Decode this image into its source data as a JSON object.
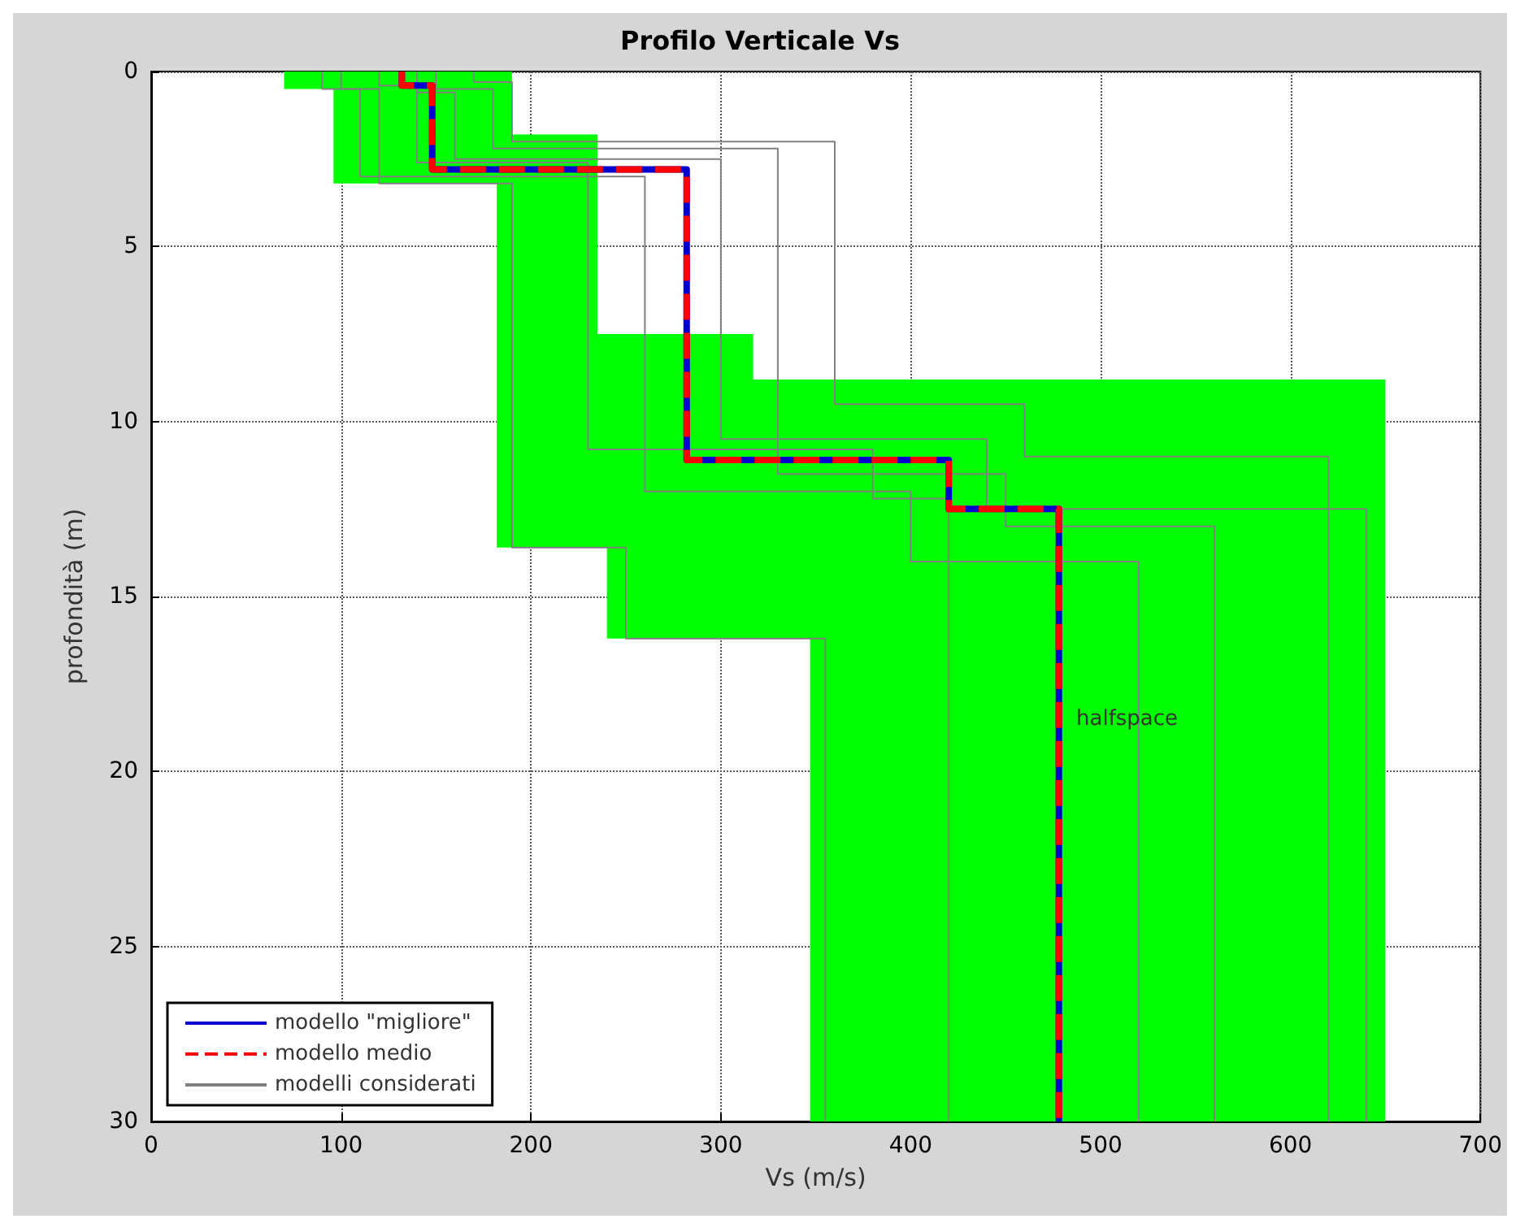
{
  "chart_data": {
    "type": "line",
    "title": "Profilo Verticale Vs",
    "xlabel": "Vs (m/s)",
    "ylabel": "profondità (m)",
    "xlim": [
      0,
      700
    ],
    "xticks": [
      0,
      100,
      200,
      300,
      400,
      500,
      600,
      700
    ],
    "ylim": [
      30,
      0
    ],
    "yticks": [
      0,
      5,
      10,
      15,
      20,
      25,
      30
    ],
    "grid": true,
    "legend": "bottom left",
    "marker": "none",
    "annotations": [
      "halfspace"
    ],
    "series": [
      {
        "type": "area",
        "color": "#00ff00",
        "x": [
          70,
          190,
          190,
          235,
          235,
          317,
          317,
          650,
          650,
          347,
          347,
          240,
          240,
          182,
          182,
          96,
          96,
          70
        ],
        "values": [
          0,
          0,
          1.8,
          1.8,
          7.5,
          7.5,
          8.8,
          8.8,
          30,
          30,
          16.2,
          16.2,
          13.6,
          13.6,
          3.2,
          3.2,
          0.5,
          0.5
        ]
      },
      {
        "name": "modelli considerati",
        "color": "#808080",
        "x": [
          100,
          100,
          120,
          120,
          190,
          190,
          250,
          250,
          355,
          355
        ],
        "values": [
          0,
          0.5,
          0.5,
          3.2,
          3.2,
          13.6,
          13.6,
          16.2,
          16.2,
          30
        ]
      },
      {
        "color": "#808080",
        "x": [
          120,
          120,
          140,
          140,
          230,
          230,
          380,
          380,
          420,
          420
        ],
        "values": [
          0,
          0.4,
          0.4,
          2.6,
          2.6,
          10.8,
          10.8,
          12.2,
          12.2,
          30
        ]
      },
      {
        "color": "#808080",
        "x": [
          150,
          150,
          180,
          180,
          330,
          330,
          450,
          450,
          560,
          560
        ],
        "values": [
          0,
          0.5,
          0.5,
          2.2,
          2.2,
          11.5,
          11.5,
          13,
          13,
          30
        ]
      },
      {
        "color": "#808080",
        "x": [
          170,
          170,
          190,
          190,
          360,
          360,
          460,
          460,
          620,
          620
        ],
        "values": [
          0,
          0.3,
          0.3,
          2,
          2,
          9.5,
          9.5,
          11,
          11,
          30
        ]
      },
      {
        "color": "#808080",
        "x": [
          90,
          90,
          110,
          110,
          260,
          260,
          400,
          400,
          520,
          520
        ],
        "values": [
          0,
          0.5,
          0.5,
          3,
          3,
          12,
          12,
          14,
          14,
          30
        ]
      },
      {
        "color": "#808080",
        "x": [
          140,
          140,
          160,
          160,
          300,
          300,
          440,
          440,
          640,
          640
        ],
        "values": [
          0,
          0.6,
          0.6,
          2.5,
          2.5,
          10.5,
          10.5,
          12.5,
          12.5,
          30
        ]
      },
      {
        "name": "modello \"migliore\"",
        "color": "#0000cc",
        "line_style": "solid",
        "x": [
          132,
          132,
          148,
          148,
          282,
          282,
          420,
          420,
          478,
          478
        ],
        "values": [
          0,
          0.4,
          0.4,
          2.8,
          2.8,
          11.1,
          11.1,
          12.5,
          12.5,
          30
        ]
      },
      {
        "name": "modello medio",
        "color": "#ff0000",
        "line_style": "dashed",
        "x": [
          132,
          132,
          148,
          148,
          282,
          282,
          420,
          420,
          478,
          478
        ],
        "values": [
          0,
          0.4,
          0.4,
          2.8,
          2.8,
          11.1,
          11.1,
          12.5,
          12.5,
          30
        ]
      }
    ]
  }
}
